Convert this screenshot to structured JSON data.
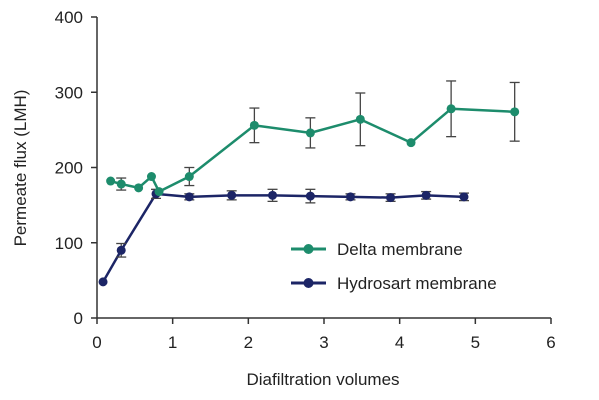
{
  "chart_data": {
    "type": "line",
    "title": "",
    "xlabel": "Diafiltration volumes",
    "ylabel": "Permeate flux (LMH)",
    "xlim": [
      0,
      6
    ],
    "ylim": [
      0,
      400
    ],
    "x_ticks": [
      0,
      1,
      2,
      3,
      4,
      5,
      6
    ],
    "y_ticks": [
      0,
      100,
      200,
      300,
      400
    ],
    "grid": false,
    "legend_position": "center-right",
    "error_bars": true,
    "series": [
      {
        "name": "Delta membrane",
        "color": "#1d8c6c",
        "points": [
          {
            "x": 0.18,
            "y": 182,
            "err": 0
          },
          {
            "x": 0.32,
            "y": 178,
            "err": 8
          },
          {
            "x": 0.55,
            "y": 173,
            "err": 0
          },
          {
            "x": 0.72,
            "y": 188,
            "err": 0
          },
          {
            "x": 0.82,
            "y": 168,
            "err": 0
          },
          {
            "x": 1.22,
            "y": 188,
            "err": 12
          },
          {
            "x": 2.08,
            "y": 256,
            "err": 23
          },
          {
            "x": 2.82,
            "y": 246,
            "err": 20
          },
          {
            "x": 3.48,
            "y": 264,
            "err": 35
          },
          {
            "x": 4.15,
            "y": 233,
            "err": 0
          },
          {
            "x": 4.68,
            "y": 278,
            "err": 37
          },
          {
            "x": 5.52,
            "y": 274,
            "err": 39
          }
        ]
      },
      {
        "name": "Hydrosart membrane",
        "color": "#1c2566",
        "points": [
          {
            "x": 0.08,
            "y": 48,
            "err": 0
          },
          {
            "x": 0.32,
            "y": 90,
            "err": 9
          },
          {
            "x": 0.78,
            "y": 165,
            "err": 6
          },
          {
            "x": 1.22,
            "y": 161,
            "err": 4
          },
          {
            "x": 1.78,
            "y": 163,
            "err": 6
          },
          {
            "x": 2.32,
            "y": 163,
            "err": 8
          },
          {
            "x": 2.82,
            "y": 162,
            "err": 9
          },
          {
            "x": 3.35,
            "y": 161,
            "err": 4
          },
          {
            "x": 3.88,
            "y": 160,
            "err": 5
          },
          {
            "x": 4.35,
            "y": 163,
            "err": 5
          },
          {
            "x": 4.85,
            "y": 161,
            "err": 5
          }
        ]
      }
    ]
  }
}
